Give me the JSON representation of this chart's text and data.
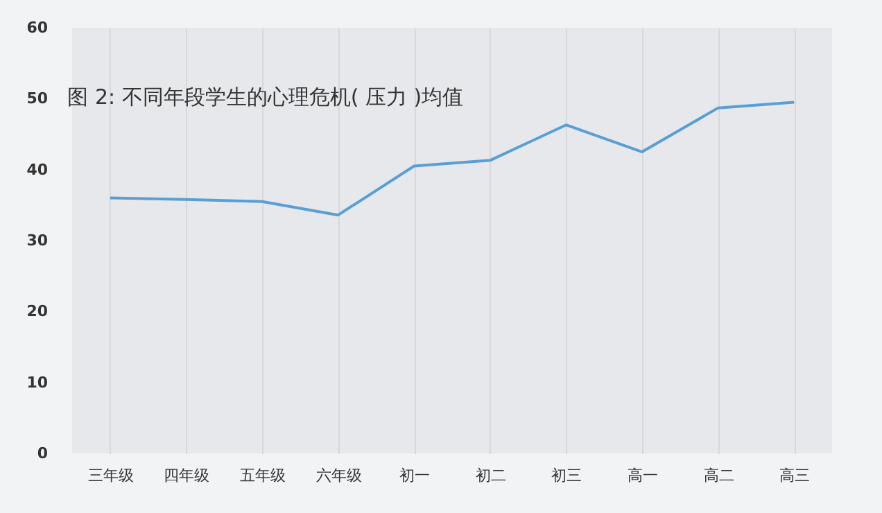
{
  "chart_data": {
    "type": "line",
    "title": "图 2: 不同年段学生的心理危机( 压力 )均值",
    "categories": [
      "三年级",
      "四年级",
      "五年级",
      "六年级",
      "初一",
      "初二",
      "初三",
      "高一",
      "高二",
      "高三"
    ],
    "series": [
      {
        "color": "#5a9fd4",
        "values": [
          36.0,
          35.8,
          35.5,
          33.6,
          40.5,
          41.3,
          46.3,
          42.5,
          48.7,
          49.5
        ]
      }
    ],
    "ylim": [
      0,
      60
    ],
    "yticks": [
      0,
      10,
      20,
      30,
      40,
      50,
      60
    ],
    "grid": "x",
    "legend": false,
    "marker": "none",
    "line_style": "solid"
  }
}
